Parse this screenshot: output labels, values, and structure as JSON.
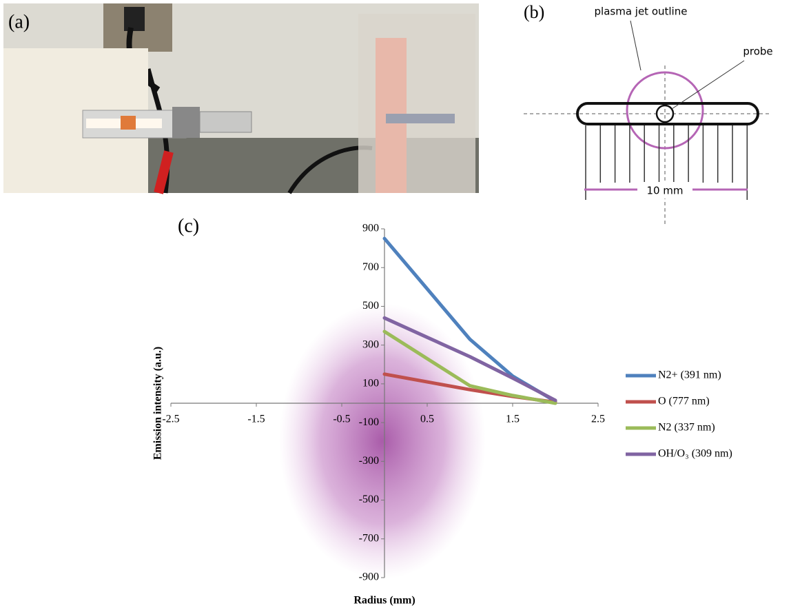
{
  "panel_a": {
    "label": "(a)"
  },
  "panel_b": {
    "label": "(b)",
    "outline_label": "plasma jet outline",
    "probe_label": "probe",
    "scale_label": "10 mm"
  },
  "chart_data": {
    "type": "line",
    "panel_label": "(c)",
    "x_label": "Radius (mm)",
    "y_label": "Emission intensity (a.u.)",
    "x": [
      0,
      0.5,
      1,
      1.5,
      2
    ],
    "series": [
      {
        "name": "N2+ (391 nm)",
        "color": "#4f81bd",
        "values": [
          850,
          590,
          330,
          140,
          10
        ]
      },
      {
        "name": "O (777 nm)",
        "color": "#c0504d",
        "values": [
          150,
          110,
          70,
          35,
          5
        ]
      },
      {
        "name": "N2 (337 nm)",
        "color": "#9bbb59",
        "values": [
          370,
          230,
          90,
          40,
          0
        ]
      },
      {
        "name": "OH/O₃ (309 nm)",
        "color": "#8064a2",
        "values": [
          440,
          340,
          240,
          130,
          15
        ]
      }
    ],
    "xlim": [
      -2.5,
      2.5
    ],
    "xticks": [
      -2.5,
      -1.5,
      -0.5,
      0.5,
      1.5,
      2.5
    ],
    "ylim": [
      -900,
      900
    ],
    "yticks": [
      900,
      700,
      500,
      300,
      100,
      -100,
      -300,
      -500,
      -700,
      -900
    ],
    "legend": "right"
  }
}
